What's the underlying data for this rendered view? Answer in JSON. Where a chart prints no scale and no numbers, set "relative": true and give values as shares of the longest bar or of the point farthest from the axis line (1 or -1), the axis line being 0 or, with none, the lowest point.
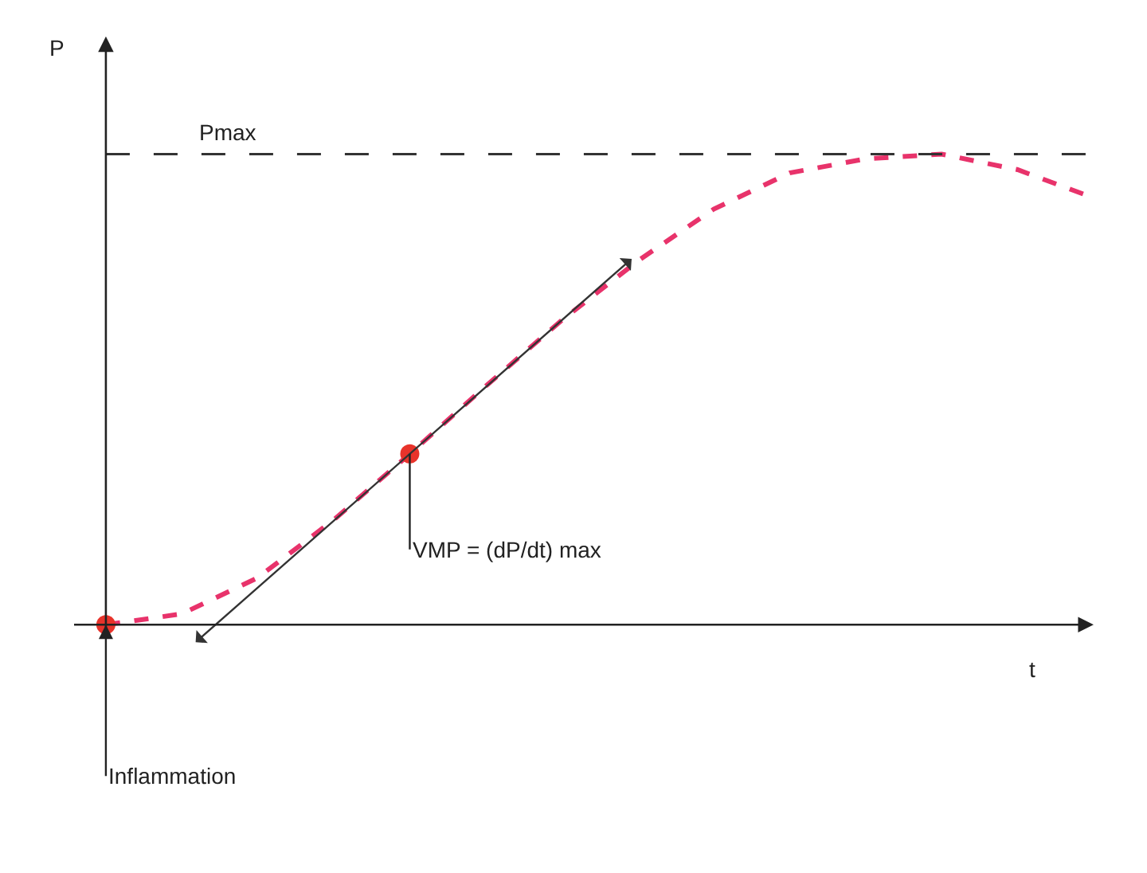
{
  "chart_data": {
    "type": "line",
    "relative": true,
    "xlabel": "t",
    "ylabel": "P",
    "categories": [
      null,
      null,
      null,
      null,
      null,
      null,
      null,
      null,
      null,
      null,
      null,
      null,
      null,
      null
    ],
    "series": [
      {
        "color": "#e8336b",
        "line_style": "dashed",
        "values": [
          0,
          0.023,
          0.1,
          0.223,
          0.363,
          0.507,
          0.647,
          0.773,
          0.883,
          0.96,
          0.99,
          1.0,
          0.967,
          0.907
        ]
      }
    ],
    "ref_lines": [
      {
        "axis": "y",
        "value": 1.0,
        "label": "Pmax",
        "color": "#333333",
        "line_style": "dashed"
      }
    ],
    "annotations": [
      "VMP = (dP/dt) max",
      "Inflammation"
    ]
  }
}
